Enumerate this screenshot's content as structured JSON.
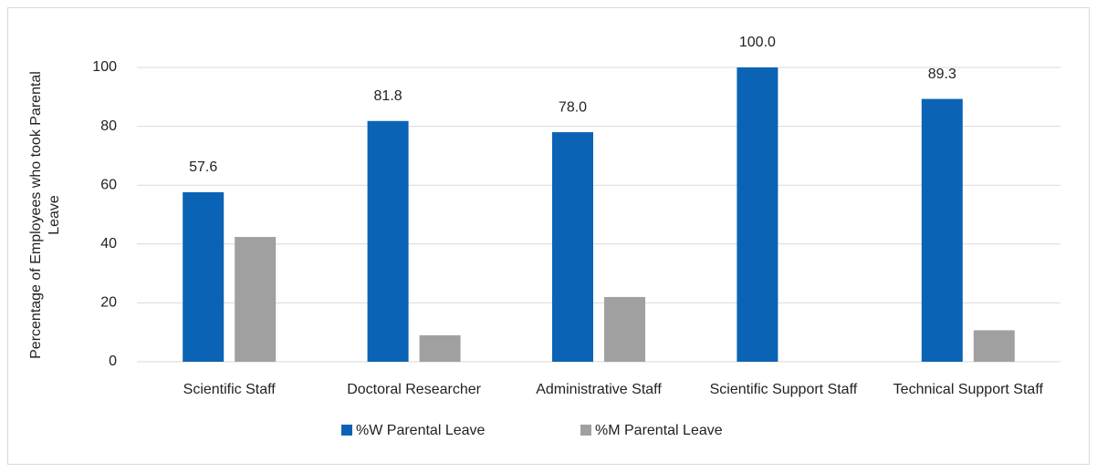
{
  "chart_data": {
    "type": "bar",
    "ylabel": "Percentage of Employees who took Parental Leave",
    "categories": [
      "Scientific Staff",
      "Doctoral Researcher",
      "Administrative Staff",
      "Scientific Support Staff",
      "Technical Support Staff"
    ],
    "series": [
      {
        "name": "%W Parental Leave",
        "color": "#0b63b5",
        "values": [
          57.6,
          81.8,
          78.0,
          100.0,
          89.3
        ],
        "value_labels": [
          "57.6",
          "81.8",
          "78.0",
          "100.0",
          "89.3"
        ]
      },
      {
        "name": "%M Parental Leave",
        "color": "#a0a0a0",
        "values": [
          42.4,
          9,
          22,
          0,
          10.7
        ]
      }
    ],
    "ylim": [
      0,
      100
    ],
    "yticks": [
      0,
      20,
      40,
      60,
      80,
      100
    ],
    "grid": true,
    "legend": "bottom"
  }
}
